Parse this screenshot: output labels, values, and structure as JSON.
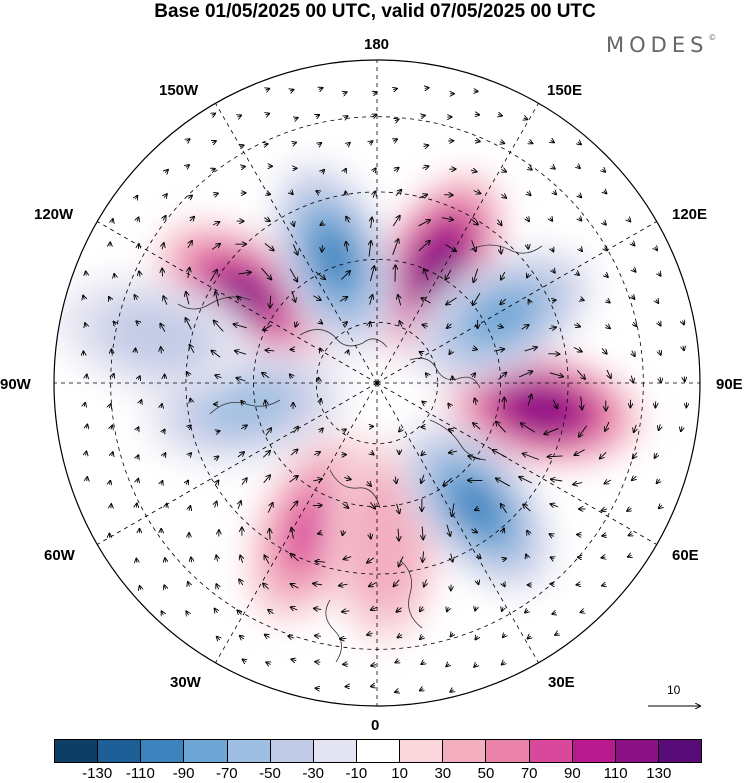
{
  "title": "Base 01/05/2025 00 UTC, valid 07/05/2025 00 UTC",
  "logo": {
    "text": "MODES",
    "mark": "©"
  },
  "longitude_labels": {
    "lon_180": "180",
    "lon_150e": "150E",
    "lon_120e": "120E",
    "lon_90e": "90E",
    "lon_60e": "60E",
    "lon_30e": "30E",
    "lon_0": "0",
    "lon_30w": "30W",
    "lon_60w": "60W",
    "lon_90w": "90W",
    "lon_120w": "120W",
    "lon_150w": "150W"
  },
  "projection": "north-polar-stereographic",
  "reference_vector": {
    "value": "10"
  },
  "colorbar": {
    "colors": [
      "#0d3f66",
      "#1d5f96",
      "#3d84bf",
      "#6ea6d6",
      "#9ebfe2",
      "#c2cbe6",
      "#e4e3f1",
      "#ffffff",
      "#f8d6dc",
      "#f3aec0",
      "#ea82aa",
      "#d9489b",
      "#b8198d",
      "#8c1184",
      "#590c78"
    ],
    "labels": [
      "-130",
      "-110",
      "-90",
      "-70",
      "-50",
      "-30",
      "-10",
      "10",
      "30",
      "50",
      "70",
      "90",
      "110",
      "130"
    ]
  },
  "anomaly_centers": [
    {
      "lon_deg": 153,
      "lat_deg": 58,
      "value": 120,
      "sign": "positive"
    },
    {
      "lon_deg": 81,
      "lat_deg": 50,
      "value": 125,
      "sign": "positive"
    },
    {
      "lon_deg": 236,
      "lat_deg": 52,
      "value": 115,
      "sign": "positive"
    },
    {
      "lon_deg": 336,
      "lat_deg": 52,
      "value": 75,
      "sign": "positive"
    },
    {
      "lon_deg": 2,
      "lat_deg": 52,
      "value": 40,
      "sign": "positive"
    },
    {
      "lon_deg": 199,
      "lat_deg": 58,
      "value": -90,
      "sign": "negative"
    },
    {
      "lon_deg": 118,
      "lat_deg": 56,
      "value": -70,
      "sign": "negative"
    },
    {
      "lon_deg": 39,
      "lat_deg": 52,
      "value": -90,
      "sign": "negative"
    },
    {
      "lon_deg": 280,
      "lat_deg": 58,
      "value": -50,
      "sign": "negative"
    },
    {
      "lon_deg": 258,
      "lat_deg": 38,
      "value": -30,
      "sign": "negative"
    }
  ]
}
